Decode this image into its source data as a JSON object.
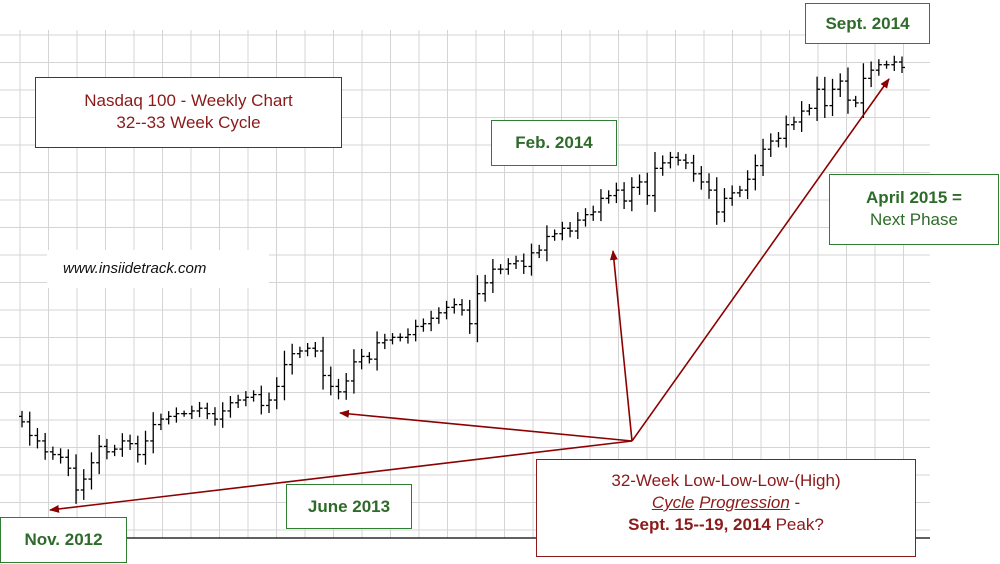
{
  "title": {
    "line1": "Nasdaq 100 - Weekly Chart",
    "line2": "32--33 Week Cycle"
  },
  "website": "www.insiidetrack.com",
  "labels": {
    "sept_2014": "Sept. 2014",
    "feb_2014": "Feb. 2014",
    "april_2015_line1": "April 2015 =",
    "april_2015_line2": "Next Phase",
    "june_2013": "June 2013",
    "nov_2012": "Nov. 2012"
  },
  "cycle_note": {
    "line1": "32-Week Low-Low-Low-(High)",
    "cycle_word": "Cycle",
    "progression_word": "Progression",
    "dash": " -",
    "dates_bold": "Sept. 15--19, 2014",
    "peak_suffix": " Peak?"
  },
  "colors": {
    "price_bars": "#000000",
    "arrows": "#8b0000",
    "grid": "#d4d4d4",
    "red_text": "#8b1a1a",
    "green_text": "#2e6b2a"
  },
  "chart_data": {
    "type": "ohlc",
    "frequency": "weekly",
    "instrument": "Nasdaq 100",
    "grid": true,
    "closes": [
      2770,
      2720,
      2700,
      2660,
      2650,
      2640,
      2600,
      2520,
      2560,
      2620,
      2680,
      2660,
      2670,
      2700,
      2690,
      2650,
      2700,
      2760,
      2780,
      2790,
      2800,
      2800,
      2810,
      2820,
      2800,
      2780,
      2810,
      2840,
      2850,
      2860,
      2870,
      2830,
      2850,
      2900,
      2980,
      3020,
      3030,
      3040,
      3030,
      2940,
      2900,
      2880,
      2920,
      2990,
      3010,
      3000,
      3060,
      3070,
      3080,
      3080,
      3090,
      3120,
      3130,
      3150,
      3170,
      3190,
      3200,
      3180,
      3130,
      3240,
      3280,
      3330,
      3330,
      3350,
      3360,
      3340,
      3390,
      3400,
      3450,
      3460,
      3480,
      3470,
      3510,
      3530,
      3540,
      3590,
      3600,
      3620,
      3580,
      3630,
      3650,
      3600,
      3700,
      3720,
      3740,
      3730,
      3720,
      3680,
      3650,
      3620,
      3540,
      3590,
      3610,
      3620,
      3660,
      3710,
      3770,
      3800,
      3810,
      3860,
      3870,
      3910,
      3920,
      3990,
      3930,
      3990,
      4020,
      3950,
      3940,
      4030,
      4060,
      4080,
      4080,
      4090,
      4070
    ]
  }
}
